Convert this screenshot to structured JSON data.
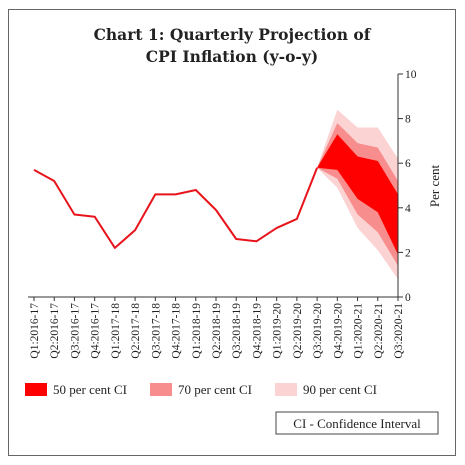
{
  "chart_data": {
    "type": "line",
    "title_lines": [
      "Chart 1: Quarterly Projection of",
      "CPI Inflation (y-o-y)"
    ],
    "ylabel": "Per cent",
    "ylim": [
      0,
      10
    ],
    "yticks": [
      0,
      2,
      4,
      6,
      8,
      10
    ],
    "y_axis_position": "right",
    "grid": false,
    "categories": [
      "Q1:2016-17",
      "Q2:2016-17",
      "Q3:2016-17",
      "Q4:2016-17",
      "Q1:2017-18",
      "Q2:2017-18",
      "Q3:2017-18",
      "Q4:2017-18",
      "Q1:2018-19",
      "Q2:2018-19",
      "Q3:2018-19",
      "Q4:2018-19",
      "Q1:2019-20",
      "Q2:2019-20",
      "Q3:2019-20",
      "Q4:2019-20",
      "Q1:2020-21",
      "Q2:2020-21",
      "Q3:2020-21"
    ],
    "series": [
      {
        "values": [
          5.7,
          5.2,
          3.7,
          3.6,
          2.2,
          3.0,
          4.6,
          4.6,
          4.8,
          3.9,
          2.6,
          2.5,
          3.1,
          3.5,
          5.8,
          null,
          null,
          null,
          null
        ],
        "color": "#e8141c"
      }
    ],
    "confidence_bands": [
      {
        "name": "90 per cent CI",
        "color": "#fcd3d3",
        "start_index": 14,
        "upper": [
          5.8,
          8.4,
          7.6,
          7.6,
          6.2
        ],
        "lower": [
          5.8,
          4.9,
          3.1,
          2.1,
          0.8
        ]
      },
      {
        "name": "70 per cent CI",
        "color": "#f88d8d",
        "start_index": 14,
        "upper": [
          5.8,
          7.8,
          6.9,
          6.7,
          5.2
        ],
        "lower": [
          5.8,
          5.3,
          3.7,
          2.9,
          1.4
        ]
      },
      {
        "name": "50 per cent CI",
        "color": "#ff0000",
        "start_index": 14,
        "upper": [
          5.8,
          7.3,
          6.3,
          6.1,
          4.6
        ],
        "lower": [
          5.8,
          5.7,
          4.4,
          3.8,
          1.9
        ]
      }
    ],
    "legend": [
      {
        "label": "50 per cent CI",
        "color": "#ff0000"
      },
      {
        "label": "70 per cent CI",
        "color": "#f88d8d"
      },
      {
        "label": "90 per cent CI",
        "color": "#fcd3d3"
      }
    ],
    "legend_placement": "bottom",
    "note": "CI - Confidence Interval"
  }
}
